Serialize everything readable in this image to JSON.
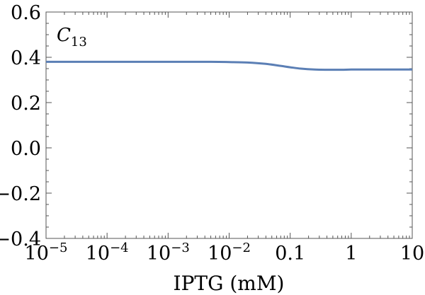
{
  "chart_data": {
    "type": "line",
    "annotation": {
      "main": "C",
      "sub": "13"
    },
    "xlabel": "IPTG (mM)",
    "ylabel": "",
    "x_scale": "log",
    "xlim": [
      1e-05,
      10
    ],
    "ylim": [
      -0.4,
      0.6
    ],
    "x_ticks": [
      {
        "value": 1e-05,
        "base": "10",
        "exp": "−5"
      },
      {
        "value": 0.0001,
        "base": "10",
        "exp": "−4"
      },
      {
        "value": 0.001,
        "base": "10",
        "exp": "−3"
      },
      {
        "value": 0.01,
        "base": "10",
        "exp": "−2"
      },
      {
        "value": 0.1,
        "base": "0.1",
        "exp": ""
      },
      {
        "value": 1,
        "base": "1",
        "exp": ""
      },
      {
        "value": 10,
        "base": "10",
        "exp": ""
      }
    ],
    "y_ticks": [
      {
        "value": 0.6,
        "label": "0.6"
      },
      {
        "value": 0.4,
        "label": "0.4"
      },
      {
        "value": 0.2,
        "label": "0.2"
      },
      {
        "value": 0.0,
        "label": "0.0"
      },
      {
        "value": -0.2,
        "label": "−0.2"
      },
      {
        "value": -0.4,
        "label": "−0.4"
      }
    ],
    "grid": false,
    "series": [
      {
        "color": "#5b7fb5",
        "x": [
          1e-05,
          0.0001,
          0.001,
          0.005,
          0.01,
          0.02,
          0.04,
          0.07,
          0.1,
          0.15,
          0.25,
          0.4,
          0.7,
          1,
          2,
          5,
          10
        ],
        "y": [
          0.38,
          0.38,
          0.38,
          0.38,
          0.379,
          0.377,
          0.371,
          0.362,
          0.356,
          0.35,
          0.346,
          0.345,
          0.345,
          0.346,
          0.346,
          0.346,
          0.346
        ]
      }
    ]
  }
}
